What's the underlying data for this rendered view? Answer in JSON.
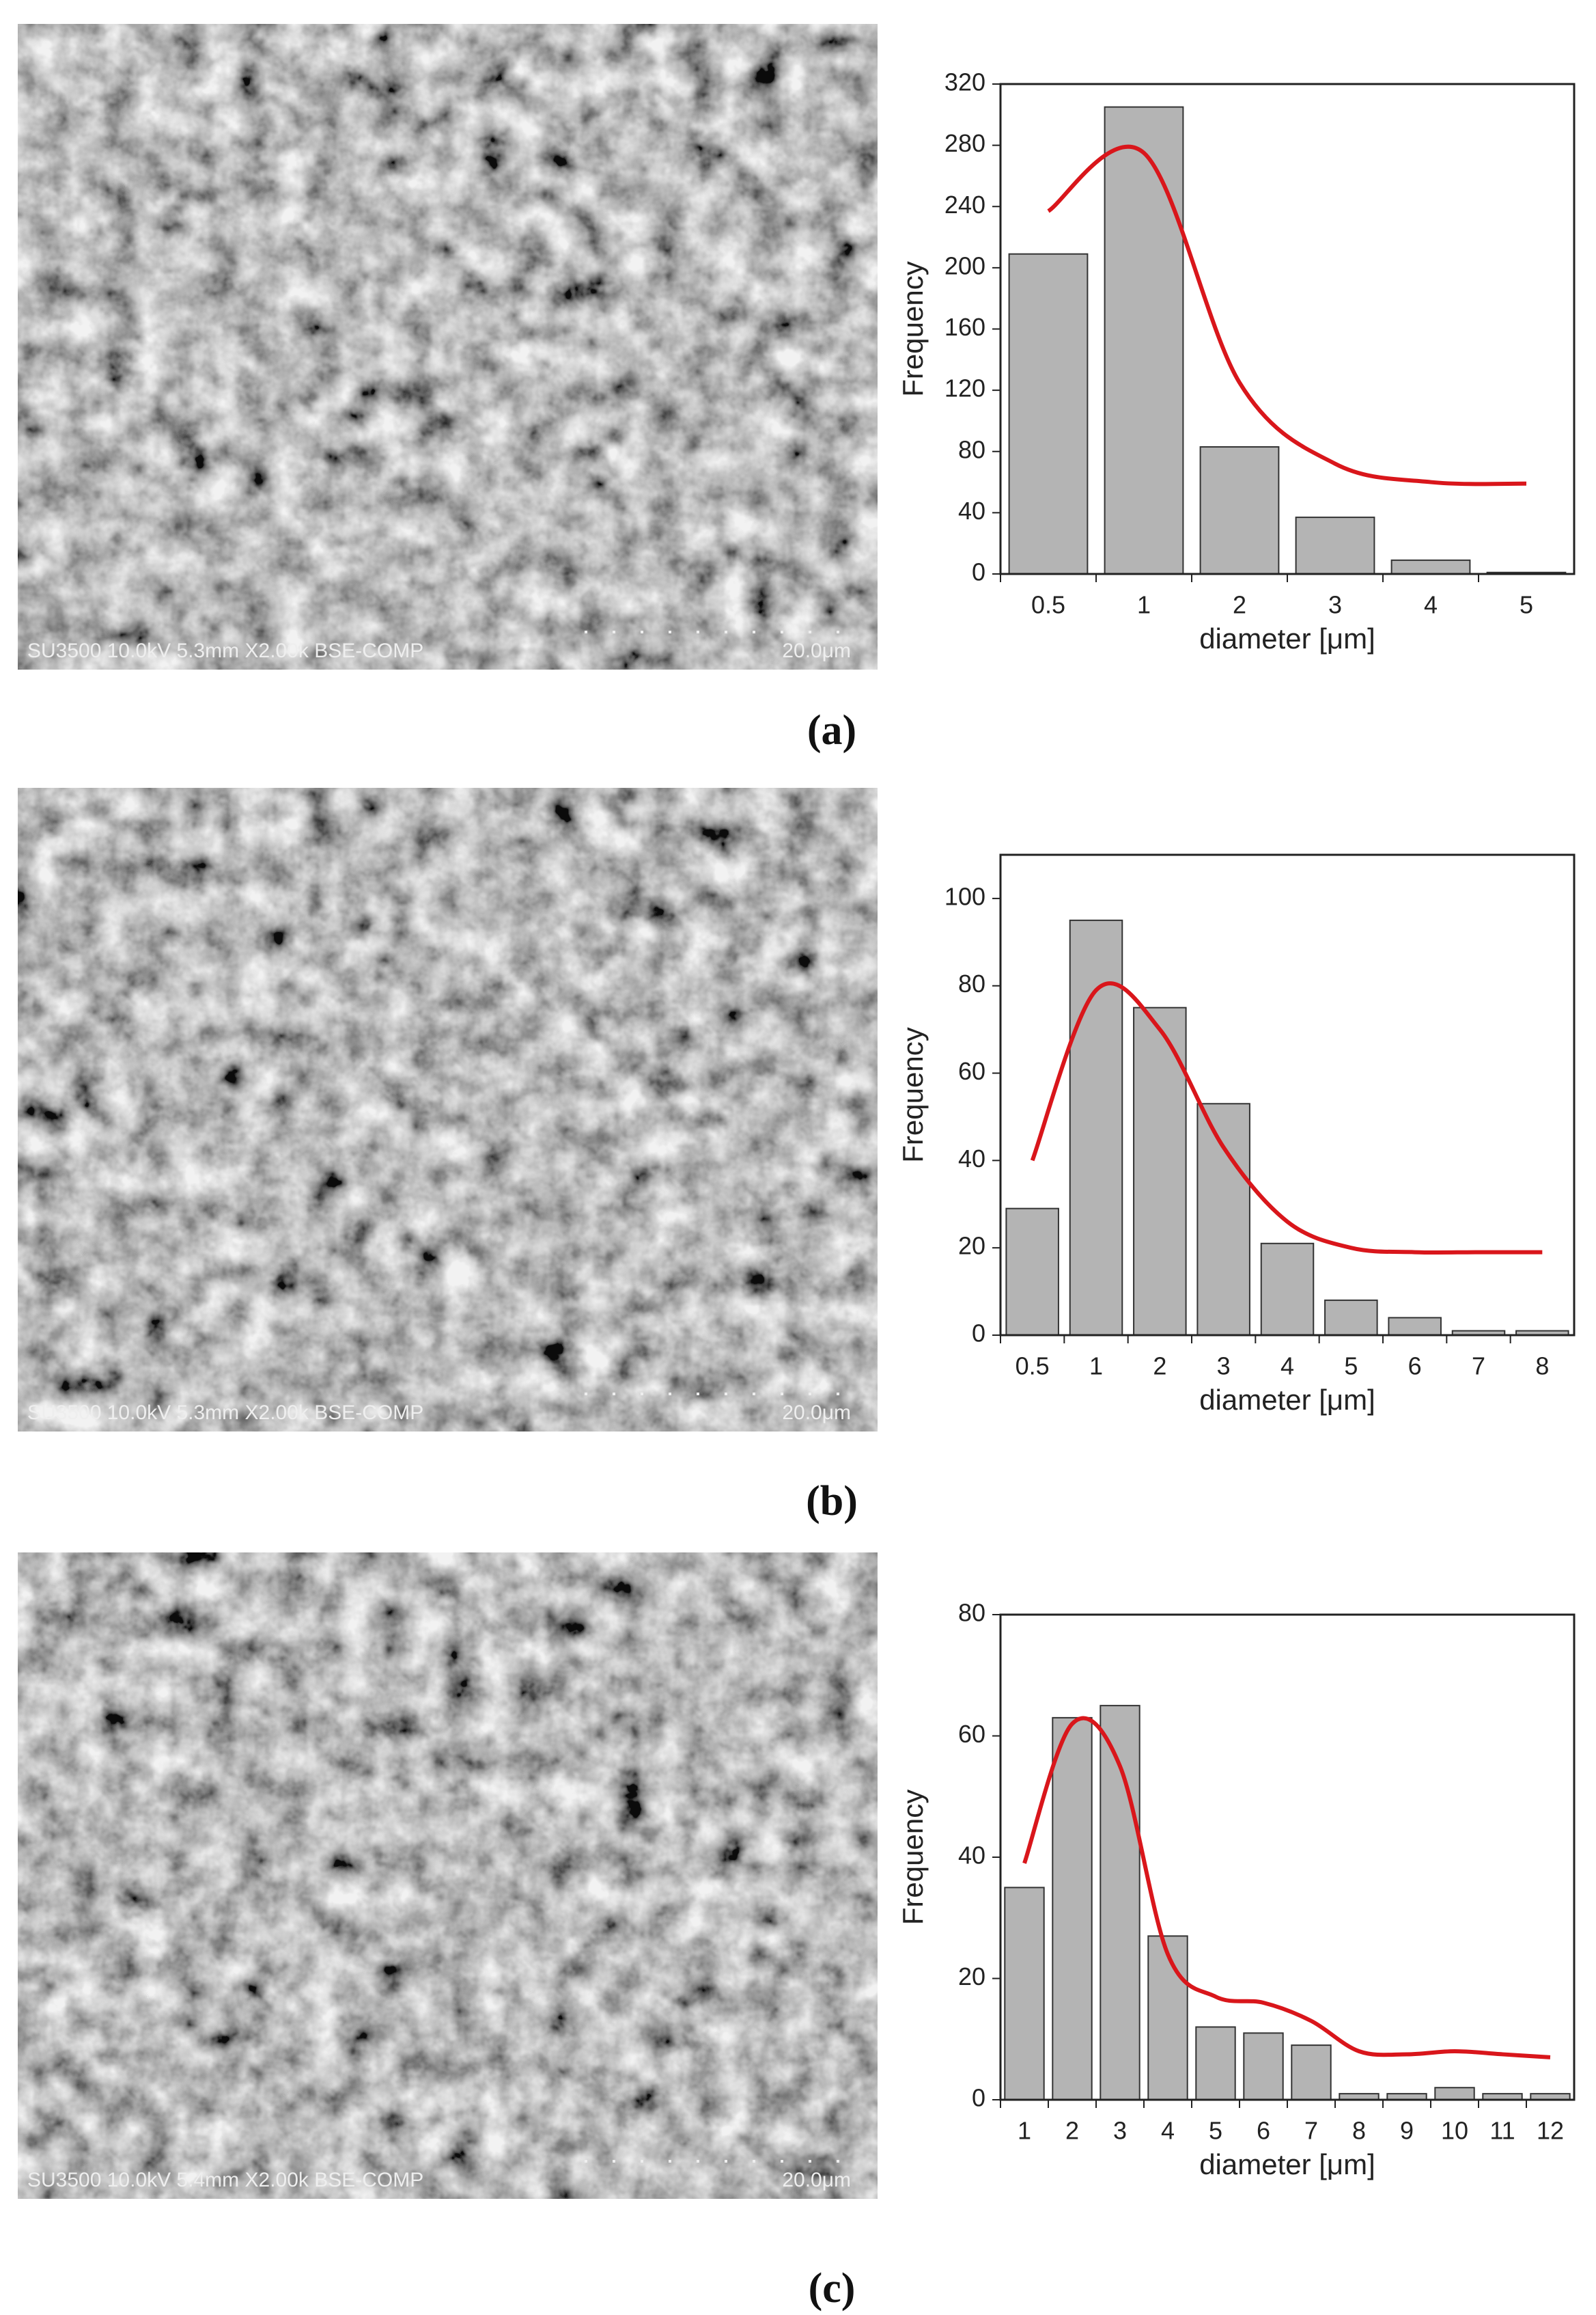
{
  "panels": [
    {
      "image_info": "SU3500 10.0kV 5.3mm X2.00k BSE-COMP",
      "scale_bar": "20.0μm",
      "label": "(a)"
    },
    {
      "image_info": "SU3500 10.0kV 5.3mm X2.00k BSE-COMP",
      "scale_bar": "20.0μm",
      "label": "(b)"
    },
    {
      "image_info": "SU3500 10.0kV 5.4mm X2.00k BSE-COMP",
      "scale_bar": "20.0μm",
      "label": "(c)"
    }
  ],
  "chart_data": [
    {
      "type": "bar",
      "x_label": "diameter [μm]",
      "y_label": "Frequency",
      "categories": [
        "0.5",
        "1",
        "2",
        "3",
        "4",
        "5"
      ],
      "values": [
        209,
        305,
        83,
        37,
        9,
        1
      ],
      "color": "#b4b4b4",
      "fit": {
        "values": [
          237,
          275,
          125,
          72,
          60,
          59
        ],
        "color": "#d9161b"
      },
      "ylim": [
        0,
        320
      ],
      "yticks": [
        0,
        40,
        80,
        120,
        160,
        200,
        240,
        280,
        320
      ]
    },
    {
      "type": "bar",
      "x_label": "diameter [μm]",
      "y_label": "Frequency",
      "categories": [
        "0.5",
        "1",
        "2",
        "3",
        "4",
        "5",
        "6",
        "7",
        "8"
      ],
      "values": [
        29,
        95,
        75,
        53,
        21,
        8,
        4,
        1,
        1
      ],
      "color": "#b4b4b4",
      "fit": {
        "values": [
          40,
          79,
          70,
          43,
          26,
          20,
          19,
          19,
          19
        ],
        "color": "#d9161b"
      },
      "ylim": [
        0,
        110
      ],
      "yticks": [
        0,
        20,
        40,
        60,
        80,
        100
      ]
    },
    {
      "type": "bar",
      "x_label": "diameter [μm]",
      "y_label": "Frequency",
      "categories": [
        "1",
        "2",
        "3",
        "4",
        "5",
        "6",
        "7",
        "8",
        "9",
        "10",
        "11",
        "12"
      ],
      "values": [
        35,
        63,
        65,
        27,
        12,
        11,
        9,
        1,
        1,
        2,
        1,
        1
      ],
      "color": "#b4b4b4",
      "fit": {
        "values": [
          39,
          62,
          55,
          24,
          17,
          16,
          13,
          8,
          7.5,
          8,
          7.5,
          7
        ],
        "color": "#d9161b"
      },
      "ylim": [
        0,
        80
      ],
      "yticks": [
        0,
        20,
        40,
        60,
        80
      ]
    }
  ]
}
